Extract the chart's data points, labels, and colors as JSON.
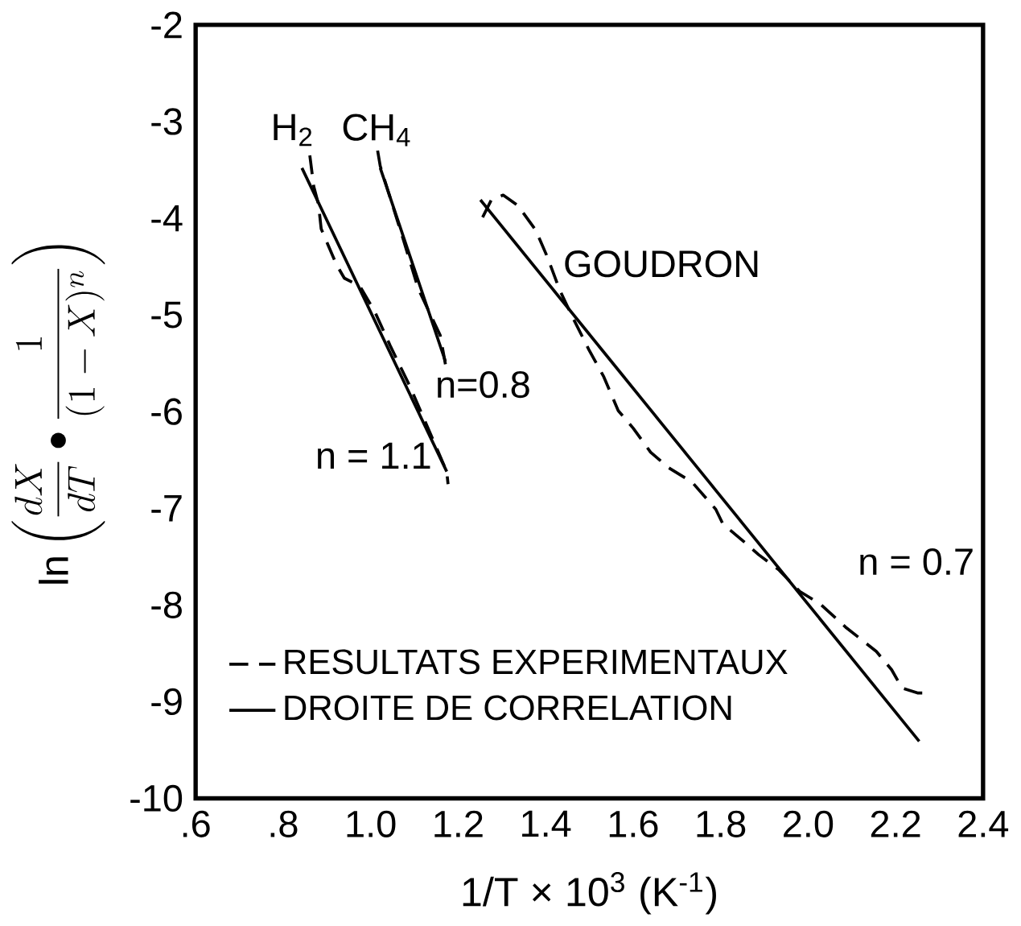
{
  "chart_data": {
    "type": "line",
    "xlabel": "1/T × 10$^{3}$ (K$^{-1}$)",
    "ylabel": "\\ln \\left(\\frac{dX}{dT}\\bullet\\frac{1}{(1-X)^{n}}\\right)",
    "xlim": [
      0.6,
      2.4
    ],
    "ylim": [
      -10,
      -2
    ],
    "xticks": [
      {
        "value": 0.6,
        "label": ".6"
      },
      {
        "value": 0.8,
        "label": ".8"
      },
      {
        "value": 1.0,
        "label": "1.0"
      },
      {
        "value": 1.2,
        "label": "1.2"
      },
      {
        "value": 1.4,
        "label": "1.4"
      },
      {
        "value": 1.6,
        "label": "1.6"
      },
      {
        "value": 1.8,
        "label": "1.8"
      },
      {
        "value": 2.0,
        "label": "2.0"
      },
      {
        "value": 2.2,
        "label": "2.2"
      },
      {
        "value": 2.4,
        "label": "2.4"
      }
    ],
    "yticks": [
      -10,
      -9,
      -8,
      -7,
      -6,
      -5,
      -4,
      -3,
      -2
    ],
    "grid": false,
    "legend": "bottom left",
    "marker": "none",
    "series": [
      {
        "name": "RESULTATS EXPERIMENTAUX",
        "color": "#000000",
        "line_style": "dashed",
        "x": [
          0.861,
          0.87,
          0.881,
          0.887,
          0.922,
          0.94,
          0.975,
          1.01,
          1.045,
          1.091,
          1.174,
          1.177
        ],
        "values": [
          -3.35,
          -3.67,
          -3.86,
          -4.11,
          -4.48,
          -4.62,
          -4.7,
          -4.97,
          -5.32,
          -5.75,
          -6.62,
          -6.75
        ]
      },
      {
        "name": "DROITE DE CORRELATION",
        "color": "#000000",
        "line_style": "solid",
        "x": [
          0.843,
          1.174
        ],
        "values": [
          -3.48,
          -6.62
        ]
      },
      {
        "color": "#000000",
        "line_style": "dashed",
        "x": [
          1.016,
          1.022,
          1.074,
          1.109,
          1.159,
          1.171
        ],
        "values": [
          -3.3,
          -3.46,
          -4.21,
          -4.73,
          -5.21,
          -5.51
        ]
      },
      {
        "color": "#000000",
        "line_style": "solid",
        "x": [
          1.022,
          1.171
        ],
        "values": [
          -3.48,
          -5.48
        ]
      },
      {
        "color": "#000000",
        "line_style": "dashed",
        "x": [
          1.256,
          1.276,
          1.303,
          1.337,
          1.377,
          1.404,
          1.432,
          1.458,
          1.499,
          1.533,
          1.566,
          1.6,
          1.64,
          1.681,
          1.735,
          1.789,
          1.805,
          1.852,
          1.887,
          1.934,
          1.981,
          2.028,
          2.086,
          2.156,
          2.191,
          2.215,
          2.25,
          2.261
        ],
        "values": [
          -3.99,
          -3.81,
          -3.76,
          -3.87,
          -4.12,
          -4.4,
          -4.74,
          -4.99,
          -5.36,
          -5.64,
          -5.99,
          -6.17,
          -6.42,
          -6.58,
          -6.73,
          -7.01,
          -7.16,
          -7.34,
          -7.48,
          -7.64,
          -7.86,
          -7.99,
          -8.23,
          -8.48,
          -8.67,
          -8.86,
          -8.91,
          -8.91
        ]
      },
      {
        "color": "#000000",
        "line_style": "solid",
        "x": [
          1.251,
          2.254
        ],
        "values": [
          -3.81,
          -9.41
        ]
      }
    ],
    "annotations": [
      "H$_{2}$",
      "CH$_{4}$",
      "GOUDRON",
      "n=0.8",
      "n = 1.1",
      "n = 0.7"
    ]
  }
}
